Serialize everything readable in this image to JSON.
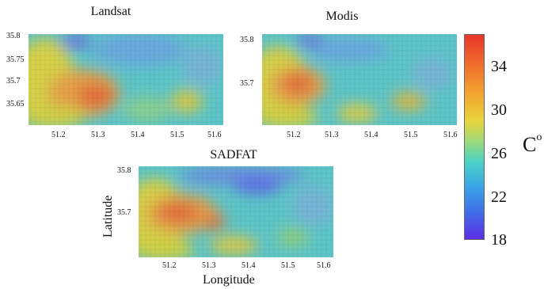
{
  "panels": [
    {
      "id": "landsat",
      "title": "Landsat",
      "y_ticks": [
        "35.8",
        "35.75",
        "35.7",
        "35.65"
      ],
      "x_ticks": [
        "51.2",
        "51.3",
        "51.4",
        "51.5",
        "51.6"
      ]
    },
    {
      "id": "modis",
      "title": "Modis",
      "y_ticks": [
        "35.8",
        "35.7"
      ],
      "x_ticks": [
        "51.2",
        "51.3",
        "51.4",
        "51.5",
        "51.6"
      ]
    },
    {
      "id": "sadfat",
      "title": "SADFAT",
      "y_ticks": [
        "35.8",
        "35.7"
      ],
      "x_ticks": [
        "51.2",
        "51.3",
        "51.4",
        "51.5",
        "51.6"
      ]
    }
  ],
  "axes": {
    "xlabel": "Longitude",
    "ylabel": "Latitude"
  },
  "colorbar": {
    "unit": "C",
    "unit_sup": "o",
    "ticks": [
      "34",
      "30",
      "26",
      "22",
      "18"
    ],
    "range": [
      18,
      36
    ],
    "colors": [
      "#e8362a",
      "#f3a230",
      "#e9d43c",
      "#4ad3c4",
      "#3aa6e6",
      "#5a2ee6"
    ]
  }
}
